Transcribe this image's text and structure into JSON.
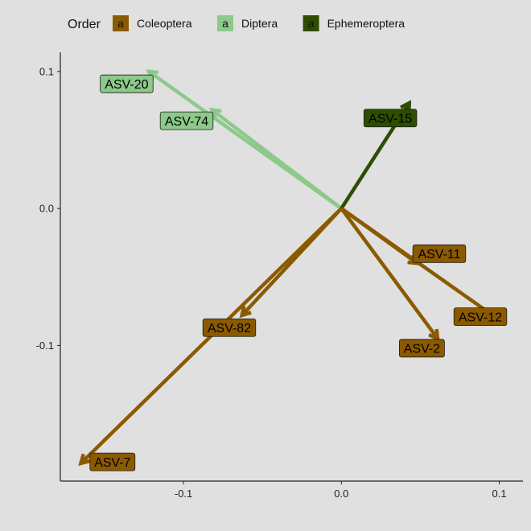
{
  "chart_data": {
    "type": "biplot-arrows",
    "xlim": [
      -0.178,
      0.115
    ],
    "ylim": [
      -0.199,
      0.114
    ],
    "x_ticks": [
      {
        "value": -0.1,
        "label": "-0.1"
      },
      {
        "value": 0.0,
        "label": "0.0"
      },
      {
        "value": 0.1,
        "label": "0.1"
      }
    ],
    "y_ticks": [
      {
        "value": 0.1,
        "label": "0.1"
      },
      {
        "value": 0.0,
        "label": "0.0"
      },
      {
        "value": -0.1,
        "label": "-0.1"
      }
    ],
    "grid": false,
    "legend": {
      "title": "Order",
      "position": "top",
      "entries": [
        {
          "name": "Coleoptera",
          "color": "#8B5A00",
          "text_color": "#000000"
        },
        {
          "name": "Diptera",
          "color": "#8CC98A",
          "text_color": "#000000"
        },
        {
          "name": "Ephemeroptera",
          "color": "#2E4D00",
          "text_color": "#000000"
        }
      ]
    },
    "arrows": [
      {
        "label": "ASV-20",
        "order": "Diptera",
        "x": -0.122,
        "y": 0.1,
        "label_x": -0.136,
        "label_y": 0.091
      },
      {
        "label": "ASV-74",
        "order": "Diptera",
        "x": -0.082,
        "y": 0.072,
        "label_x": -0.098,
        "label_y": 0.064
      },
      {
        "label": "ASV-15",
        "order": "Ephemeroptera",
        "x": 0.043,
        "y": 0.077,
        "label_x": 0.031,
        "label_y": 0.066
      },
      {
        "label": "ASV-11",
        "order": "Coleoptera",
        "x": 0.048,
        "y": -0.04,
        "label_x": 0.062,
        "label_y": -0.033
      },
      {
        "label": "ASV-12",
        "order": "Coleoptera",
        "x": 0.102,
        "y": -0.083,
        "label_x": 0.088,
        "label_y": -0.079
      },
      {
        "label": "ASV-2",
        "order": "Coleoptera",
        "x": 0.061,
        "y": -0.095,
        "label_x": 0.051,
        "label_y": -0.102
      },
      {
        "label": "ASV-82",
        "order": "Coleoptera",
        "x": -0.063,
        "y": -0.078,
        "label_x": -0.071,
        "label_y": -0.087
      },
      {
        "label": "ASV-7",
        "order": "Coleoptera",
        "x": -0.165,
        "y": -0.186,
        "label_x": -0.145,
        "label_y": -0.185
      }
    ]
  }
}
